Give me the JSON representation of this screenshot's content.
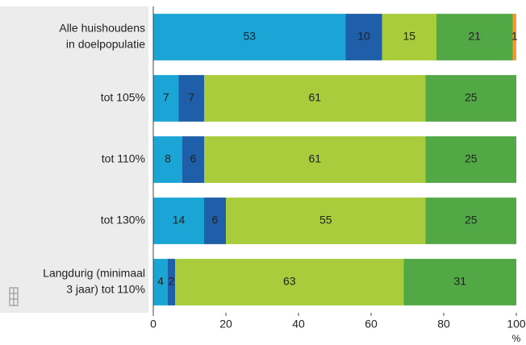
{
  "chart_data": {
    "type": "stacked-barh",
    "categories": [
      [
        "Alle huishoudens",
        "in doelpopulatie"
      ],
      [
        "tot 105%"
      ],
      [
        "tot 110%"
      ],
      [
        "tot 130%"
      ],
      [
        "Langdurig (minimaal",
        "3 jaar) tot 110%"
      ]
    ],
    "series": [
      {
        "color": "#1aa5d6",
        "values": [
          53,
          7,
          8,
          14,
          4
        ]
      },
      {
        "color": "#1f5ea8",
        "values": [
          10,
          7,
          6,
          6,
          2
        ]
      },
      {
        "color": "#a8cc3c",
        "values": [
          15,
          61,
          61,
          55,
          63
        ]
      },
      {
        "color": "#53a846",
        "values": [
          21,
          25,
          25,
          25,
          31
        ]
      },
      {
        "color": "#f39a2b",
        "values": [
          1,
          null,
          null,
          null,
          null
        ]
      }
    ],
    "xlim": [
      0,
      100
    ],
    "xticks": [
      0,
      20,
      40,
      60,
      80,
      100
    ],
    "xlabel": "%"
  }
}
